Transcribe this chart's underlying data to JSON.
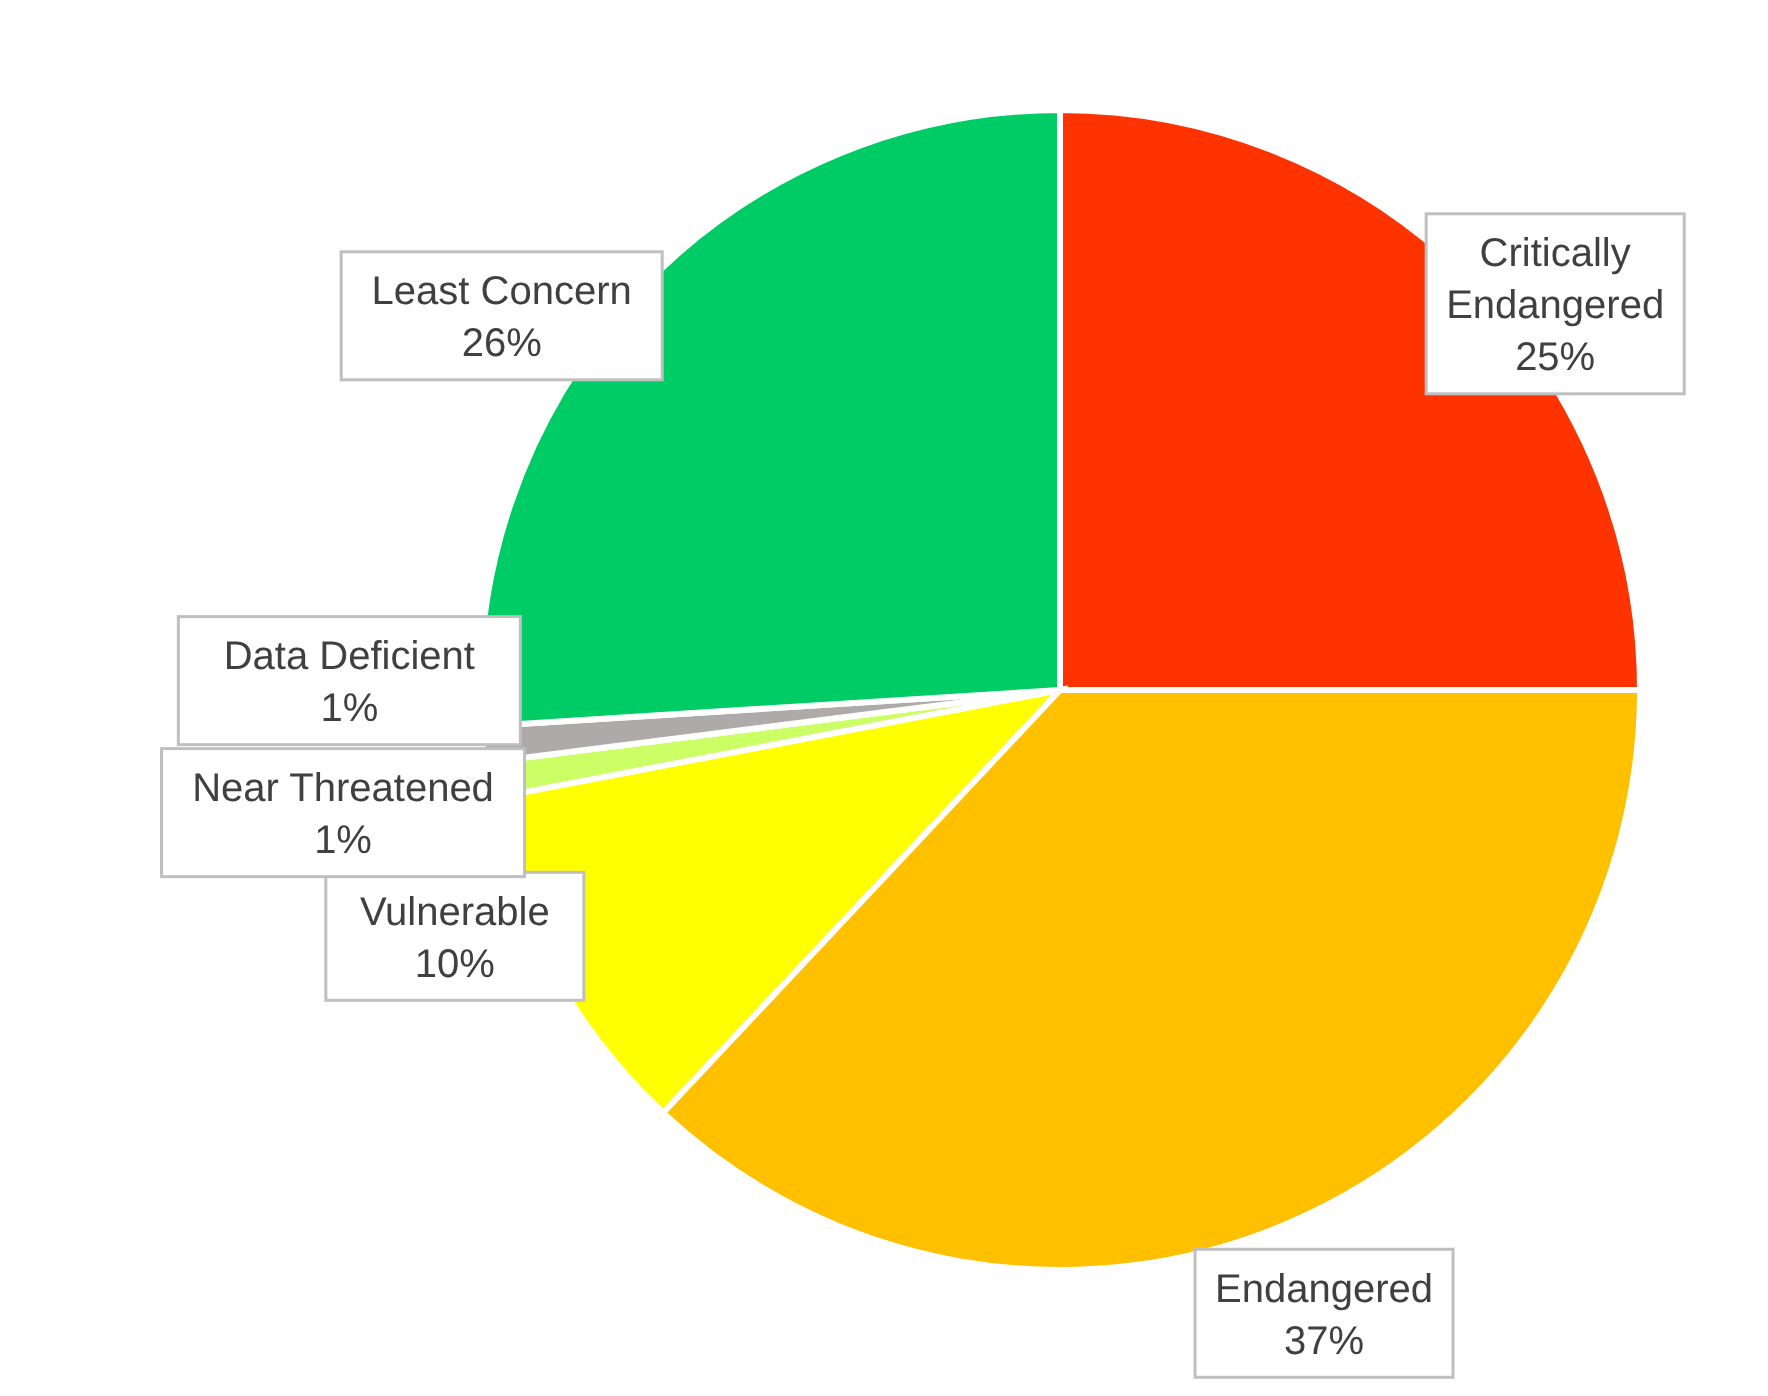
{
  "chart_data": {
    "type": "pie",
    "categories": [
      "Critically Endangered",
      "Endangered",
      "Vulnerable",
      "Near Threatened",
      "Data Deficient",
      "Least Concern"
    ],
    "values": [
      25,
      37,
      10,
      1,
      1,
      26
    ],
    "value_labels": [
      "25%",
      "37%",
      "10%",
      "1%",
      "1%",
      "26%"
    ],
    "colors": [
      "#ff3300",
      "#ffc000",
      "#ffff00",
      "#ccff66",
      "#aeaaaa",
      "#00cc66"
    ],
    "legend": false
  }
}
